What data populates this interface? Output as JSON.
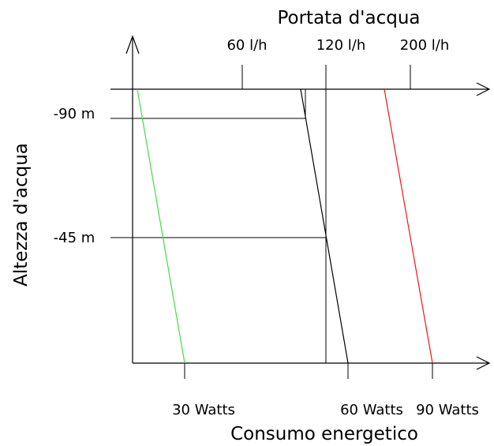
{
  "top_axis": {
    "title": "Portata d'acqua",
    "ticks": [
      "60 l/h",
      "120 l/h",
      "200 l/h"
    ]
  },
  "left_axis": {
    "title": "Altezza d'acqua",
    "ticks": [
      "-90 m",
      "-45 m"
    ]
  },
  "bottom_axis": {
    "title": "Consumo energetico",
    "ticks": [
      "30 Watts",
      "60 Watts",
      "90 Watts"
    ]
  },
  "colors": {
    "axes": "#000000",
    "line_30w": "#44dd44",
    "line_60w": "#000000",
    "line_90w": "#e81818"
  }
}
